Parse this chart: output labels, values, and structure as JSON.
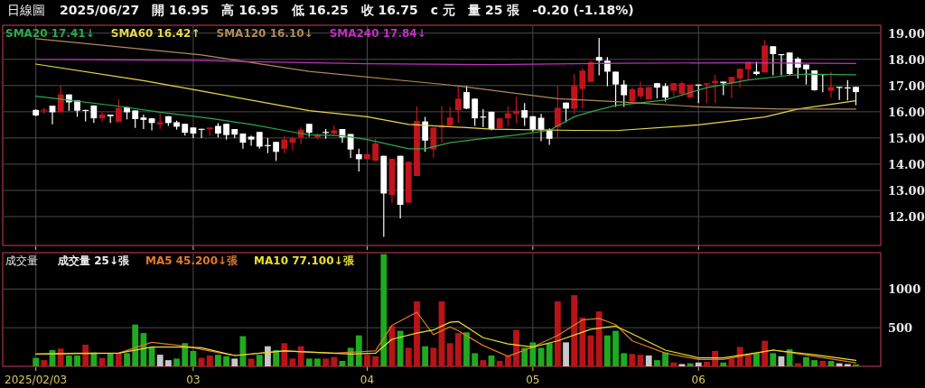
{
  "chart_data": [
    {
      "type": "candlestick",
      "title": "日線圖",
      "annotations": [
        "2025/06/27",
        "開 16.95",
        "高 16.95",
        "低 16.25",
        "收 16.75",
        "c 元",
        "量 25 張",
        "-0.20 (-1.18%)"
      ],
      "categories": [
        "2025/02/03",
        null,
        null,
        null,
        null,
        null,
        null,
        null,
        null,
        null,
        null,
        null,
        null,
        null,
        null,
        null,
        null,
        null,
        null,
        "03",
        null,
        null,
        null,
        null,
        null,
        null,
        null,
        null,
        null,
        null,
        null,
        null,
        null,
        null,
        null,
        null,
        null,
        null,
        null,
        null,
        "04",
        null,
        null,
        null,
        null,
        null,
        null,
        null,
        null,
        null,
        null,
        null,
        null,
        null,
        null,
        null,
        null,
        null,
        null,
        null,
        "05",
        null,
        null,
        null,
        null,
        null,
        null,
        null,
        null,
        null,
        null,
        null,
        null,
        null,
        null,
        null,
        null,
        null,
        null,
        null,
        "06",
        null,
        null,
        null,
        null,
        null,
        null,
        null,
        null,
        null,
        null,
        null,
        null,
        null,
        null,
        null,
        null,
        null,
        null,
        null
      ],
      "ylim": [
        10.9,
        19.3
      ],
      "yticks": [
        {
          "value": 12,
          "label": "12.00"
        },
        {
          "value": 13,
          "label": "13.00"
        },
        {
          "value": 14,
          "label": "14.00"
        },
        {
          "value": 15,
          "label": "15.00"
        },
        {
          "value": 16,
          "label": "16.00"
        },
        {
          "value": 17,
          "label": "17.00"
        },
        {
          "value": 18,
          "label": "18.00"
        },
        {
          "value": 19,
          "label": "19.00"
        }
      ],
      "tick_labels": "y",
      "grid": true,
      "legend": "top left",
      "series": [
        {
          "ohlc": [
            [
              16.07,
              16.09,
              15.83,
              15.86
            ],
            [
              16.04,
              16.15,
              15.92,
              16.08
            ],
            [
              16.23,
              16.23,
              15.52,
              15.98
            ],
            [
              15.98,
              16.99,
              15.98,
              16.66
            ],
            [
              16.66,
              16.66,
              16.04,
              16.36
            ],
            [
              16.43,
              16.43,
              15.81,
              16.04
            ],
            [
              16.07,
              16.07,
              15.63,
              16.05
            ],
            [
              16.24,
              16.24,
              15.57,
              15.75
            ],
            [
              15.75,
              16.0,
              15.61,
              15.9
            ],
            [
              15.89,
              15.89,
              15.57,
              15.83
            ],
            [
              15.61,
              16.48,
              15.61,
              16.15
            ],
            [
              16.18,
              16.18,
              15.71,
              15.98
            ],
            [
              16.05,
              16.05,
              15.38,
              15.72
            ],
            [
              15.78,
              15.89,
              15.34,
              15.69
            ],
            [
              15.75,
              15.75,
              15.29,
              15.57
            ],
            [
              15.52,
              15.94,
              15.34,
              15.6
            ],
            [
              15.83,
              15.83,
              15.46,
              15.57
            ],
            [
              15.6,
              15.66,
              15.32,
              15.43
            ],
            [
              15.54,
              15.54,
              15.09,
              15.2
            ],
            [
              15.4,
              15.4,
              15.0,
              15.17
            ],
            [
              15.35,
              15.35,
              15.0,
              15.34
            ],
            [
              15.34,
              15.4,
              15.08,
              15.4
            ],
            [
              15.46,
              15.57,
              15.02,
              15.17
            ],
            [
              15.54,
              15.54,
              14.94,
              15.11
            ],
            [
              15.34,
              15.34,
              15.0,
              15.13
            ],
            [
              15.17,
              15.17,
              14.59,
              14.82
            ],
            [
              15.05,
              15.09,
              14.7,
              14.94
            ],
            [
              15.23,
              15.23,
              14.59,
              14.67
            ],
            [
              14.73,
              15.0,
              14.42,
              14.72
            ],
            [
              14.85,
              14.85,
              14.13,
              14.47
            ],
            [
              14.59,
              15.08,
              14.42,
              14.94
            ],
            [
              14.82,
              15.05,
              14.53,
              14.99
            ],
            [
              15.02,
              15.4,
              14.76,
              15.32
            ],
            [
              15.54,
              15.54,
              15.05,
              15.2
            ],
            [
              15.02,
              15.17,
              14.94,
              15.11
            ],
            [
              15.23,
              15.34,
              14.97,
              15.21
            ],
            [
              15.17,
              15.48,
              15.11,
              15.29
            ],
            [
              15.34,
              15.34,
              14.82,
              15.02
            ],
            [
              15.15,
              15.15,
              14.24,
              14.56
            ],
            [
              14.38,
              14.59,
              13.72,
              14.19
            ],
            [
              14.19,
              14.42,
              14.13,
              14.38
            ],
            [
              14.13,
              14.97,
              14.13,
              14.79
            ],
            [
              14.32,
              14.32,
              11.23,
              12.88
            ],
            [
              12.82,
              14.21,
              12.51,
              14.21
            ],
            [
              14.32,
              14.32,
              11.93,
              12.45
            ],
            [
              12.53,
              14.09,
              12.53,
              14.09
            ],
            [
              13.55,
              16.21,
              13.55,
              15.65
            ],
            [
              15.63,
              15.81,
              14.47,
              14.9
            ],
            [
              14.56,
              15.4,
              14.24,
              15.4
            ],
            [
              15.4,
              16.21,
              14.82,
              15.48
            ],
            [
              15.48,
              16.18,
              15.46,
              15.78
            ],
            [
              16.06,
              16.96,
              15.57,
              16.5
            ],
            [
              16.75,
              16.99,
              16.1,
              16.12
            ],
            [
              16.5,
              16.5,
              15.46,
              15.75
            ],
            [
              15.82,
              16.1,
              15.42,
              15.8
            ],
            [
              16.0,
              16.0,
              15.29,
              15.34
            ],
            [
              15.37,
              15.75,
              15.37,
              15.75
            ],
            [
              15.75,
              16.21,
              15.46,
              15.94
            ],
            [
              15.92,
              16.56,
              15.57,
              16.04
            ],
            [
              16.06,
              16.33,
              15.46,
              15.77
            ],
            [
              15.83,
              15.83,
              15.25,
              15.31
            ],
            [
              15.77,
              15.92,
              14.88,
              15.31
            ],
            [
              15.29,
              15.37,
              14.74,
              14.97
            ],
            [
              15.42,
              16.99,
              14.99,
              16.15
            ],
            [
              16.35,
              16.35,
              15.6,
              16.12
            ],
            [
              16.12,
              17.45,
              15.92,
              16.99
            ],
            [
              16.87,
              17.66,
              16.13,
              17.57
            ],
            [
              17.14,
              17.95,
              17.14,
              17.89
            ],
            [
              18.09,
              18.82,
              17.39,
              17.95
            ],
            [
              17.95,
              18.09,
              16.98,
              17.53
            ],
            [
              17.53,
              17.53,
              16.19,
              17.04
            ],
            [
              17.04,
              17.21,
              16.19,
              16.63
            ],
            [
              16.39,
              16.92,
              16.36,
              16.86
            ],
            [
              16.59,
              17.15,
              16.51,
              16.92
            ],
            [
              16.47,
              16.94,
              16.47,
              16.94
            ],
            [
              17.09,
              17.09,
              16.51,
              16.92
            ],
            [
              16.98,
              17.09,
              16.39,
              16.54
            ],
            [
              16.8,
              17.09,
              16.59,
              17.09
            ],
            [
              16.68,
              17.15,
              16.59,
              17.09
            ],
            [
              16.54,
              17.04,
              16.54,
              17.04
            ],
            [
              17.04,
              17.04,
              16.33,
              17.03
            ],
            [
              17.04,
              17.09,
              16.33,
              17.09
            ],
            [
              17.09,
              17.41,
              16.33,
              17.18
            ],
            [
              17.15,
              17.15,
              16.63,
              17.09
            ],
            [
              17.09,
              17.33,
              16.51,
              17.33
            ],
            [
              17.27,
              17.64,
              16.92,
              17.64
            ],
            [
              17.62,
              17.91,
              17.21,
              17.91
            ],
            [
              17.53,
              17.91,
              17.39,
              17.44
            ],
            [
              17.5,
              18.73,
              17.5,
              18.53
            ],
            [
              18.5,
              18.5,
              17.39,
              18.2
            ],
            [
              18.2,
              18.2,
              17.39,
              18.19
            ],
            [
              18.26,
              18.26,
              17.39,
              17.44
            ],
            [
              18.03,
              18.09,
              17.27,
              17.68
            ],
            [
              17.8,
              17.8,
              17.04,
              17.62
            ],
            [
              17.58,
              17.58,
              16.8,
              16.82
            ],
            [
              17.44,
              17.44,
              16.74,
              17.43
            ],
            [
              16.8,
              17.53,
              16.54,
              16.94
            ],
            [
              16.95,
              16.95,
              16.45,
              16.94
            ],
            [
              16.93,
              17.21,
              16.43,
              16.92
            ],
            [
              16.95,
              16.95,
              16.25,
              16.75
            ]
          ],
          "colors": [
            "#ffffff",
            "#c0141c",
            "#ffffff",
            "#c0141c",
            "#ffffff",
            "#ffffff",
            "#ffffff",
            "#ffffff",
            "#c0141c",
            "#ffffff",
            "#c0141c",
            "#ffffff",
            "#ffffff",
            "#ffffff",
            "#ffffff",
            "#c0141c",
            "#ffffff",
            "#ffffff",
            "#ffffff",
            "#ffffff",
            "#ffffff",
            "#c0141c",
            "#ffffff",
            "#ffffff",
            "#ffffff",
            "#ffffff",
            "#ffffff",
            "#ffffff",
            "#ffffff",
            "#ffffff",
            "#c0141c",
            "#c0141c",
            "#c0141c",
            "#ffffff",
            "#c0141c",
            "#ffffff",
            "#c0141c",
            "#ffffff",
            "#ffffff",
            "#ffffff",
            "#c0141c",
            "#c0141c",
            "#ffffff",
            "#c0141c",
            "#ffffff",
            "#c0141c",
            "#c0141c",
            "#ffffff",
            "#c0141c",
            "#c0141c",
            "#c0141c",
            "#c0141c",
            "#ffffff",
            "#ffffff",
            "#ffffff",
            "#ffffff",
            "#c0141c",
            "#c0141c",
            "#c0141c",
            "#ffffff",
            "#ffffff",
            "#ffffff",
            "#ffffff",
            "#c0141c",
            "#ffffff",
            "#c0141c",
            "#c0141c",
            "#c0141c",
            "#ffffff",
            "#ffffff",
            "#ffffff",
            "#ffffff",
            "#c0141c",
            "#c0141c",
            "#c0141c",
            "#ffffff",
            "#ffffff",
            "#c0141c",
            "#c0141c",
            "#c0141c",
            "#ffffff",
            "#c0141c",
            "#c0141c",
            "#ffffff",
            "#c0141c",
            "#c0141c",
            "#c0141c",
            "#ffffff",
            "#c0141c",
            "#ffffff",
            "#ffffff",
            "#ffffff",
            "#ffffff",
            "#ffffff",
            "#ffffff",
            "#ffffff",
            "#c0141c",
            "#ffffff",
            "#ffffff",
            "#ffffff"
          ]
        },
        {
          "type": "line",
          "name": "SMA20 17.41↓",
          "color": "#2ea84a",
          "values": [
            16.59,
            null,
            null,
            16.48,
            null,
            null,
            null,
            null,
            null,
            null,
            16.21,
            null,
            null,
            null,
            null,
            15.98,
            null,
            null,
            null,
            null,
            null,
            15.75,
            null,
            null,
            null,
            null,
            15.52,
            null,
            null,
            null,
            null,
            15.23,
            null,
            15.12,
            null,
            null,
            null,
            15.09,
            null,
            null,
            14.94,
            null,
            null,
            null,
            null,
            14.59,
            null,
            14.59,
            null,
            null,
            14.82,
            null,
            null,
            14.94,
            null,
            null,
            null,
            null,
            15.11,
            null,
            null,
            null,
            15.29,
            null,
            null,
            15.81,
            null,
            16.0,
            null,
            null,
            16.24,
            null,
            null,
            null,
            null,
            null,
            16.45,
            null,
            null,
            null,
            null,
            16.92,
            null,
            null,
            null,
            null,
            17.21,
            null,
            null,
            null,
            null,
            17.39,
            null,
            17.44,
            null,
            null,
            null,
            null,
            null,
            17.41
          ]
        },
        {
          "type": "line",
          "name": "SMA60 16.42↑",
          "color": "#e6d84a",
          "values": [
            17.82,
            null,
            null,
            null,
            null,
            null,
            null,
            null,
            null,
            null,
            null,
            null,
            null,
            17.19,
            null,
            null,
            null,
            null,
            null,
            null,
            16.79,
            null,
            null,
            null,
            null,
            null,
            null,
            null,
            null,
            null,
            null,
            null,
            null,
            16.04,
            null,
            null,
            null,
            null,
            null,
            null,
            15.81,
            null,
            null,
            null,
            null,
            15.52,
            null,
            null,
            null,
            null,
            null,
            null,
            null,
            null,
            null,
            15.34,
            null,
            null,
            null,
            null,
            null,
            null,
            null,
            null,
            null,
            15.29,
            null,
            null,
            null,
            null,
            15.28,
            null,
            null,
            null,
            null,
            null,
            null,
            null,
            null,
            null,
            15.5,
            null,
            null,
            null,
            null,
            null,
            null,
            null,
            15.8,
            null,
            null,
            null,
            16.1,
            null,
            null,
            null,
            null,
            null,
            null,
            16.42
          ]
        },
        {
          "type": "line",
          "name": "SMA120 16.10↓",
          "color": "#b08a5a",
          "values": [
            18.79,
            null,
            null,
            null,
            null,
            null,
            null,
            null,
            null,
            null,
            null,
            null,
            null,
            null,
            null,
            null,
            null,
            null,
            null,
            null,
            18.17,
            null,
            null,
            null,
            null,
            null,
            null,
            null,
            null,
            null,
            null,
            null,
            null,
            17.54,
            null,
            null,
            null,
            null,
            null,
            null,
            null,
            null,
            null,
            null,
            null,
            null,
            null,
            null,
            null,
            null,
            17.02,
            null,
            null,
            null,
            null,
            null,
            null,
            null,
            null,
            null,
            null,
            null,
            null,
            16.5,
            null,
            null,
            null,
            null,
            null,
            null,
            16.39,
            null,
            null,
            null,
            null,
            null,
            null,
            null,
            null,
            null,
            16.19,
            null,
            null,
            null,
            null,
            null,
            null,
            null,
            null,
            null,
            16.1,
            null,
            null,
            null,
            null,
            null,
            null,
            null,
            null,
            16.1
          ]
        },
        {
          "type": "line",
          "name": "SMA240 17.84↓",
          "color": "#c030c0",
          "values": [
            18.0,
            null,
            null,
            null,
            null,
            null,
            null,
            null,
            null,
            null,
            null,
            null,
            null,
            null,
            null,
            null,
            null,
            null,
            null,
            null,
            17.95,
            null,
            null,
            null,
            null,
            null,
            null,
            null,
            null,
            null,
            null,
            null,
            null,
            null,
            null,
            null,
            null,
            null,
            null,
            null,
            17.83,
            null,
            null,
            null,
            null,
            null,
            null,
            null,
            null,
            null,
            null,
            null,
            null,
            null,
            null,
            17.8,
            null,
            null,
            null,
            null,
            null,
            null,
            null,
            null,
            null,
            null,
            null,
            null,
            null,
            null,
            17.85,
            null,
            null,
            null,
            null,
            null,
            null,
            null,
            null,
            null,
            null,
            null,
            null,
            null,
            null,
            17.87,
            null,
            null,
            null,
            null,
            null,
            null,
            null,
            null,
            null,
            null,
            null,
            null,
            null,
            17.84
          ]
        }
      ]
    },
    {
      "type": "bar",
      "title": "成交量",
      "categories": [
        "2025/02/03",
        null,
        null,
        null,
        null,
        null,
        null,
        null,
        null,
        null,
        null,
        null,
        null,
        null,
        null,
        null,
        null,
        null,
        null,
        "03",
        null,
        null,
        null,
        null,
        null,
        null,
        null,
        null,
        null,
        null,
        null,
        null,
        null,
        null,
        null,
        null,
        null,
        null,
        null,
        null,
        "04",
        null,
        null,
        null,
        null,
        null,
        null,
        null,
        null,
        null,
        null,
        null,
        null,
        null,
        null,
        null,
        null,
        null,
        null,
        null,
        "05",
        null,
        null,
        null,
        null,
        null,
        null,
        null,
        null,
        null,
        null,
        null,
        null,
        null,
        null,
        null,
        null,
        null,
        null,
        null,
        "06",
        null,
        null,
        null,
        null,
        null,
        null,
        null,
        null,
        null,
        null,
        null,
        null,
        null,
        null,
        null,
        null,
        null,
        null,
        null
      ],
      "ylim": [
        0,
        1470
      ],
      "yticks": [
        500,
        1000
      ],
      "grid": true,
      "legend": "top left",
      "series": [
        {
          "name": "成交量 25↓張",
          "values": [
            110,
            80,
            210,
            230,
            140,
            140,
            280,
            180,
            110,
            170,
            170,
            170,
            540,
            430,
            250,
            150,
            80,
            100,
            300,
            200,
            110,
            140,
            150,
            130,
            100,
            390,
            100,
            150,
            260,
            210,
            300,
            100,
            260,
            100,
            100,
            100,
            120,
            70,
            240,
            400,
            150,
            130,
            1450,
            520,
            460,
            240,
            840,
            260,
            240,
            840,
            300,
            430,
            440,
            170,
            80,
            140,
            70,
            130,
            470,
            240,
            310,
            240,
            300,
            840,
            310,
            920,
            630,
            400,
            710,
            400,
            460,
            170,
            160,
            150,
            140,
            80,
            180,
            50,
            30,
            40,
            50,
            60,
            200,
            50,
            100,
            250,
            150,
            170,
            330,
            170,
            130,
            220,
            40,
            120,
            80,
            70,
            70,
            40,
            30,
            25
          ],
          "colors": [
            "#1faa1f",
            "#b81418",
            "#1faa1f",
            "#b81418",
            "#1faa1f",
            "#1faa1f",
            "#b81418",
            "#1faa1f",
            "#b81418",
            "#1faa1f",
            "#b81418",
            "#1faa1f",
            "#1faa1f",
            "#1faa1f",
            "#1faa1f",
            "#c8c8c8",
            "#c8c8c8",
            "#1faa1f",
            "#1faa1f",
            "#1faa1f",
            "#b81418",
            "#b81418",
            "#1faa1f",
            "#1faa1f",
            "#c8c8c8",
            "#1faa1f",
            "#b81418",
            "#1faa1f",
            "#c8c8c8",
            "#1faa1f",
            "#b81418",
            "#b81418",
            "#b81418",
            "#1faa1f",
            "#1faa1f",
            "#b81418",
            "#b81418",
            "#1faa1f",
            "#1faa1f",
            "#1faa1f",
            "#b81418",
            "#b81418",
            "#1faa1f",
            "#b81418",
            "#1faa1f",
            "#b81418",
            "#b81418",
            "#1faa1f",
            "#b81418",
            "#b81418",
            "#b81418",
            "#b81418",
            "#1faa1f",
            "#1faa1f",
            "#b81418",
            "#1faa1f",
            "#b81418",
            "#b81418",
            "#b81418",
            "#1faa1f",
            "#1faa1f",
            "#1faa1f",
            "#1faa1f",
            "#b81418",
            "#c8c8c8",
            "#b81418",
            "#b81418",
            "#b81418",
            "#b81418",
            "#1faa1f",
            "#1faa1f",
            "#1faa1f",
            "#b81418",
            "#b81418",
            "#c8c8c8",
            "#1faa1f",
            "#1faa1f",
            "#b81418",
            "#c8c8c8",
            "#1faa1f",
            "#c8c8c8",
            "#b81418",
            "#b81418",
            "#1faa1f",
            "#b81418",
            "#b81418",
            "#b81418",
            "#1faa1f",
            "#b81418",
            "#1faa1f",
            "#c8c8c8",
            "#1faa1f",
            "#b81418",
            "#1faa1f",
            "#1faa1f",
            "#b81418",
            "#1faa1f",
            "#c8c8c8",
            "#c8c8c8",
            "#1faa1f"
          ]
        },
        {
          "type": "line",
          "name": "MA5 45.200↓張",
          "color": "#e07a2a",
          "values": [
            160,
            null,
            null,
            null,
            null,
            170,
            null,
            null,
            null,
            null,
            170,
            null,
            null,
            null,
            310,
            null,
            null,
            null,
            260,
            null,
            null,
            null,
            180,
            null,
            140,
            null,
            null,
            null,
            null,
            null,
            200,
            null,
            null,
            null,
            null,
            null,
            170,
            null,
            null,
            null,
            null,
            200,
            null,
            530,
            null,
            null,
            700,
            null,
            410,
            null,
            510,
            460,
            null,
            null,
            270,
            null,
            null,
            130,
            null,
            null,
            250,
            null,
            null,
            400,
            null,
            null,
            600,
            null,
            620,
            null,
            540,
            null,
            330,
            null,
            null,
            null,
            170,
            null,
            null,
            null,
            90,
            null,
            null,
            90,
            null,
            null,
            null,
            null,
            null,
            210,
            null,
            null,
            null,
            null,
            130,
            null,
            null,
            null,
            null,
            45.2
          ]
        },
        {
          "type": "line",
          "name": "MA10 77.100↓張",
          "color": "#e8e030",
          "values": [
            160,
            null,
            null,
            null,
            null,
            null,
            null,
            null,
            null,
            null,
            170,
            null,
            null,
            null,
            250,
            null,
            null,
            null,
            250,
            null,
            240,
            null,
            null,
            null,
            140,
            null,
            null,
            null,
            null,
            null,
            200,
            null,
            null,
            null,
            null,
            null,
            null,
            null,
            160,
            null,
            null,
            170,
            null,
            350,
            null,
            null,
            430,
            null,
            470,
            null,
            570,
            580,
            null,
            null,
            370,
            null,
            null,
            290,
            null,
            null,
            250,
            null,
            null,
            330,
            null,
            null,
            null,
            480,
            null,
            null,
            520,
            null,
            420,
            null,
            null,
            null,
            210,
            null,
            null,
            null,
            110,
            null,
            null,
            110,
            null,
            null,
            null,
            null,
            null,
            210,
            null,
            null,
            null,
            null,
            150,
            null,
            null,
            null,
            null,
            77.1
          ]
        }
      ]
    }
  ]
}
